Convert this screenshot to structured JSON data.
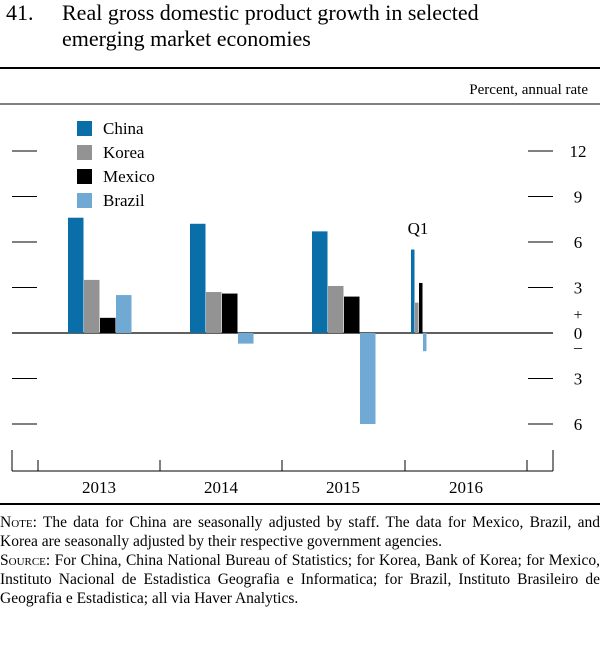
{
  "figure": {
    "number": "41.",
    "title_line1": "Real gross domestic product growth in selected",
    "title_line2": "emerging market economies"
  },
  "chart_data": {
    "type": "bar",
    "title": "Real gross domestic product growth in selected emerging market economies",
    "unit_label": "Percent, annual rate",
    "categories": [
      "2013",
      "2014",
      "2015",
      "2016"
    ],
    "series": [
      {
        "name": "China",
        "color": "#0a6fa9",
        "values": [
          7.6,
          7.2,
          6.7,
          5.5
        ]
      },
      {
        "name": "Korea",
        "color": "#939393",
        "values": [
          3.5,
          2.7,
          3.1,
          2.0
        ]
      },
      {
        "name": "Mexico",
        "color": "#000000",
        "values": [
          1.0,
          2.6,
          2.4,
          3.3
        ]
      },
      {
        "name": "Brazil",
        "color": "#6fa9d4",
        "values": [
          2.5,
          -0.7,
          -6.0,
          -1.2
        ]
      }
    ],
    "annotation": "Q1",
    "ylim": [
      -8,
      14
    ],
    "yticks": [
      {
        "value": 12,
        "label": "12"
      },
      {
        "value": 9,
        "label": "9"
      },
      {
        "value": 6,
        "label": "6"
      },
      {
        "value": 3,
        "label": "3"
      },
      {
        "value": 0,
        "label": "0"
      },
      {
        "value": -3,
        "label": "3"
      },
      {
        "value": -6,
        "label": "6"
      }
    ],
    "plus_sign": "+",
    "minus_sign": "_"
  },
  "notes": {
    "note_label": "Note:",
    "note_text": " The data for China are seasonally adjusted by staff. The data for Mexico, Brazil, and Korea are seasonally adjusted by their respective government agencies.",
    "source_label": "Source:",
    "source_text": " For China, China National Bureau of Statistics; for Korea, Bank of Korea; for Mexico, Instituto Nacional de Estadistica Geografia e Informatica; for Brazil, Instituto Brasileiro de Geografia e Estadistica; all via Haver Analytics."
  }
}
